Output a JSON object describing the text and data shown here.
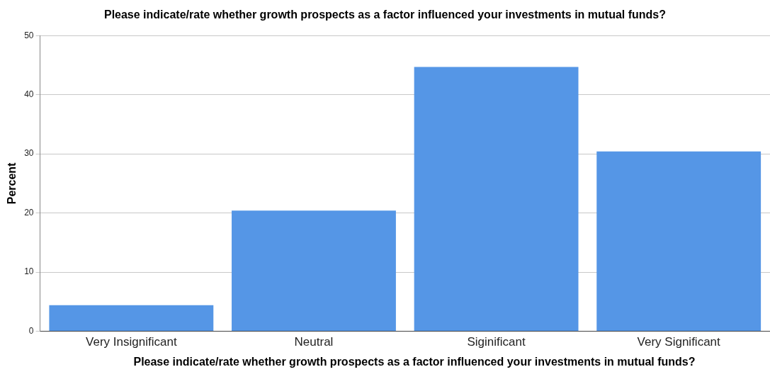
{
  "chart_data": {
    "type": "bar",
    "title": "Please indicate/rate whether growth prospects as a factor influenced your investments in mutual funds?",
    "xlabel": "Please indicate/rate whether growth prospects as a factor influenced your investments in mutual funds?",
    "ylabel": "Percent",
    "categories": [
      "Very Insignificant",
      "Neutral",
      "Siginificant",
      "Very Significant"
    ],
    "values": [
      4.4,
      20.4,
      44.7,
      30.4
    ],
    "color": "#5596e6",
    "ylim": [
      0,
      50
    ],
    "yticks": [
      0,
      10,
      20,
      30,
      40,
      50
    ],
    "grid": "y",
    "legend": false
  }
}
